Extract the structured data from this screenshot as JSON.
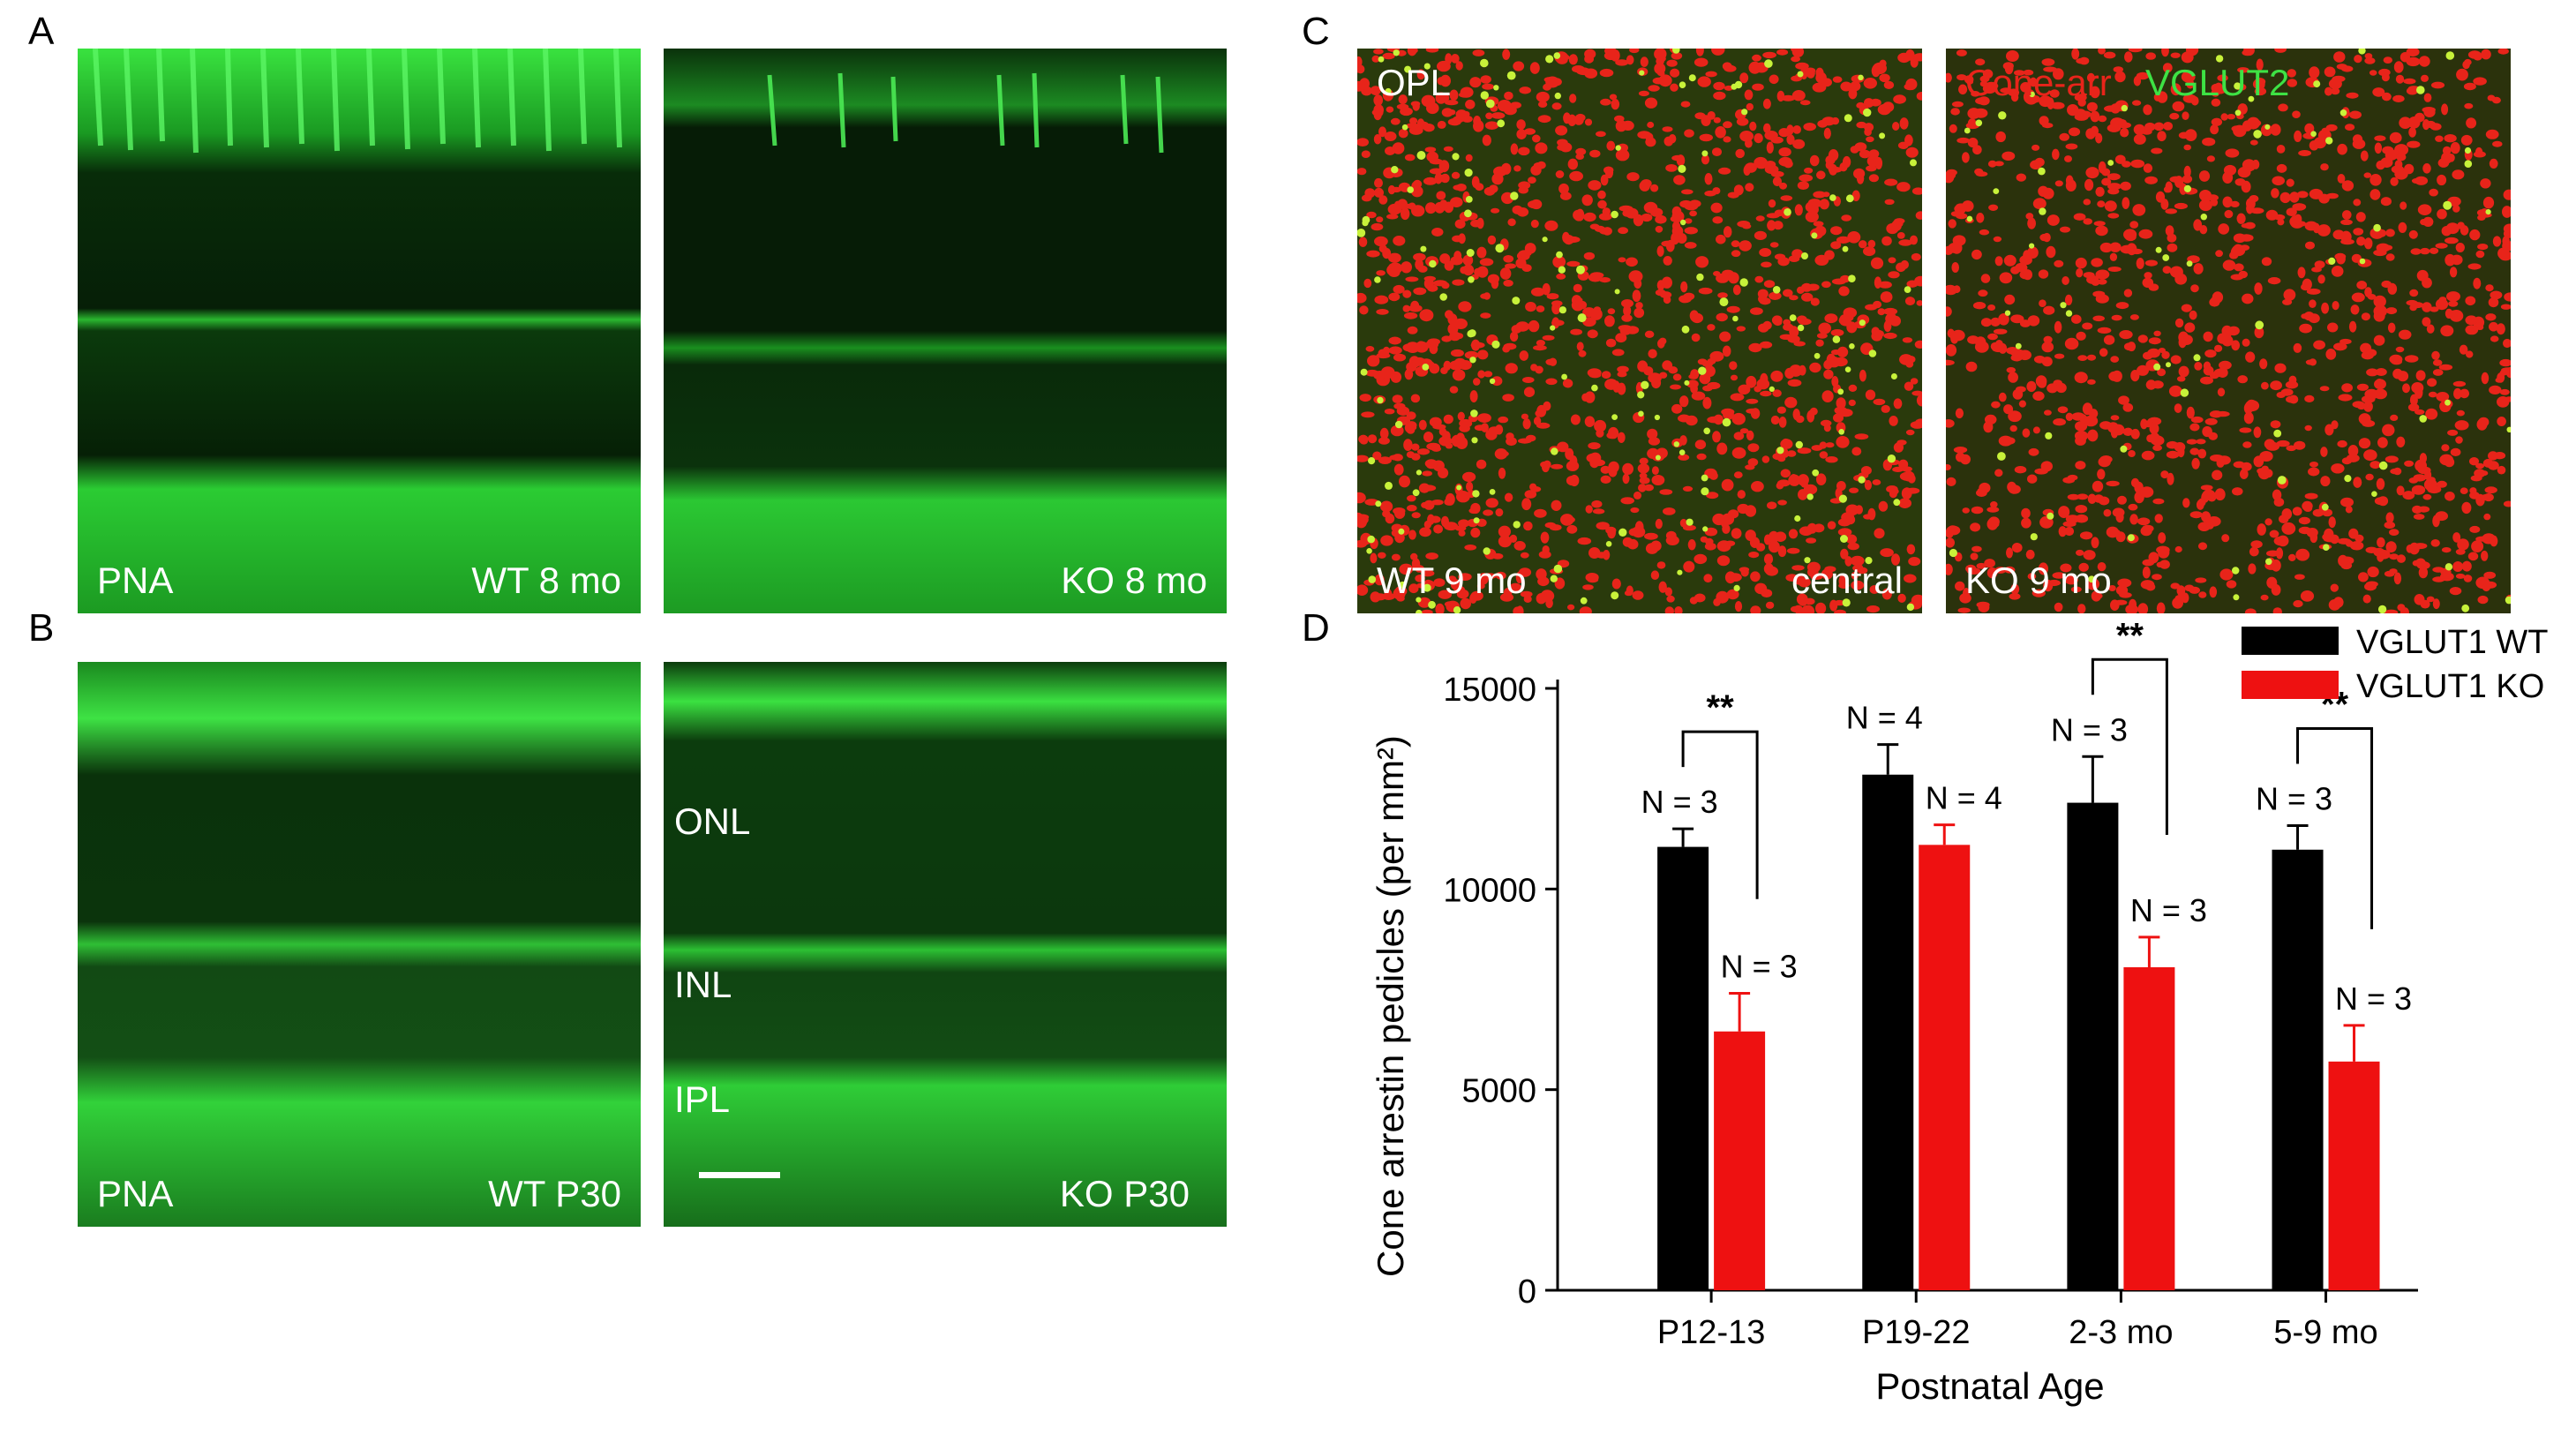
{
  "panels": {
    "a": {
      "letter": "A",
      "left": {
        "stain": "PNA",
        "sample": "WT 8 mo"
      },
      "right": {
        "sample": "KO 8 mo"
      }
    },
    "b": {
      "letter": "B",
      "left": {
        "stain": "PNA",
        "sample": "WT P30"
      },
      "right": {
        "sample": "KO P30"
      },
      "layers": [
        "ONL",
        "INL",
        "IPL"
      ]
    },
    "c": {
      "letter": "C",
      "left": {
        "layer": "OPL",
        "sample": "WT 9 mo",
        "region": "central"
      },
      "right": {
        "sample": "KO 9 mo",
        "stain_red": "Cone-arr",
        "stain_green": "VGLUT2"
      }
    },
    "d": {
      "letter": "D"
    }
  },
  "colors": {
    "wt": "#000000",
    "ko": "#ee1111",
    "pna_green": "#2fe03a",
    "arrestin_red": "#e8241a",
    "vglut2_green": "#c8f23a"
  },
  "chart_data": {
    "type": "bar",
    "categories": [
      "P12-13",
      "P19-22",
      "2-3 mo",
      "5-9 mo"
    ],
    "series": [
      {
        "name": "VGLUT1 WT",
        "values": [
          11050,
          12850,
          12150,
          10980
        ],
        "errors": [
          450,
          750,
          1150,
          600
        ],
        "n_labels": [
          "N = 3",
          "N = 4",
          "N = 3",
          "N = 3"
        ]
      },
      {
        "name": "VGLUT1 KO",
        "values": [
          6450,
          11100,
          8050,
          5700
        ],
        "errors": [
          950,
          500,
          750,
          900
        ],
        "n_labels": [
          "N = 3",
          "N = 4",
          "N = 3",
          "N = 3"
        ]
      }
    ],
    "significance": [
      "**",
      "",
      "**",
      "**"
    ],
    "xlabel": "Postnatal Age",
    "ylabel": "Cone arrestin pedicles (per mm²)",
    "ylim": [
      0,
      15000
    ],
    "yticks": [
      0,
      5000,
      10000,
      15000
    ],
    "legend_position": "top-right",
    "grid": false
  }
}
